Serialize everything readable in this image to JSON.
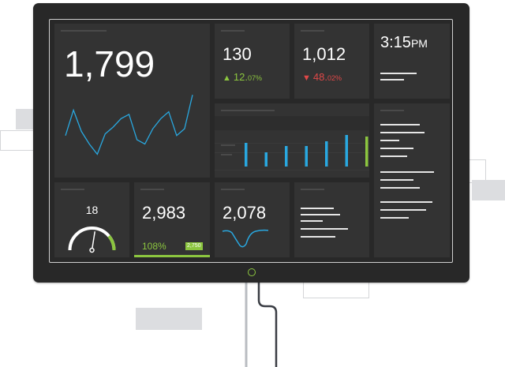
{
  "colors": {
    "monitor": "#282828",
    "tile": "#333333",
    "accent_green": "#8cc63f",
    "accent_red": "#e04848",
    "accent_blue": "#29a8e0"
  },
  "tiles": {
    "main_metric": {
      "value": "1,799",
      "sparkline": [
        30,
        60,
        35,
        20,
        8,
        32,
        40,
        50,
        55,
        25,
        20,
        38,
        50,
        58,
        30,
        38,
        78
      ]
    },
    "metric_a": {
      "value": "130",
      "delta": "12.",
      "delta_small": "07%"
    },
    "metric_b": {
      "value": "1,012",
      "delta": "48.",
      "delta_small": "02%"
    },
    "clock": {
      "time": "3:15",
      "period": "PM"
    },
    "gauge": {
      "value": "18",
      "fraction": 0.55
    },
    "goal": {
      "value": "2,983",
      "percent": "108%",
      "target": "2,750"
    },
    "trend": {
      "value": "2,078"
    },
    "bars": {
      "values": [
        30,
        18,
        26,
        26,
        32,
        40,
        38
      ],
      "highlight_index": 6
    }
  }
}
